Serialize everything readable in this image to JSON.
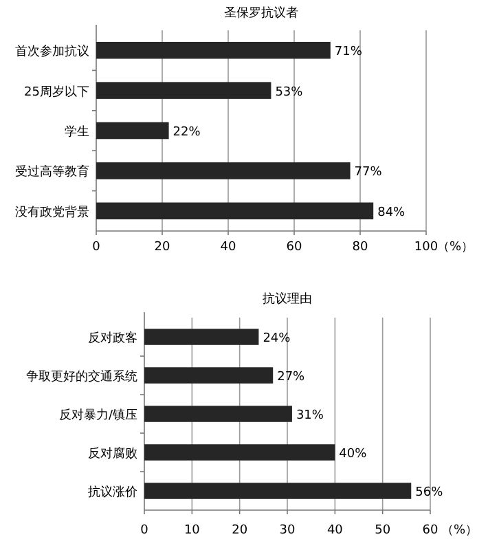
{
  "chart_data": [
    {
      "type": "bar",
      "orientation": "horizontal",
      "title": "圣保罗抗议者",
      "xlabel": "（%）",
      "categories": [
        "首次参加抗议",
        "25周岁以下",
        "学生",
        "受过高等教育",
        "没有政党背景"
      ],
      "values": [
        71,
        53,
        22,
        77,
        84
      ],
      "value_labels": [
        "71%",
        "53%",
        "22%",
        "77%",
        "84%"
      ],
      "color": "#262626",
      "xlim": [
        0,
        100
      ],
      "xticks": [
        0,
        20,
        40,
        60,
        80,
        100
      ],
      "grid": "x"
    },
    {
      "type": "bar",
      "orientation": "horizontal",
      "title": "抗议理由",
      "xlabel": "（%）",
      "categories": [
        "反对政客",
        "争取更好的交通系统",
        "反对暴力/镇压",
        "反对腐败",
        "抗议涨价"
      ],
      "values": [
        24,
        27,
        31,
        40,
        56
      ],
      "value_labels": [
        "24%",
        "27%",
        "31%",
        "40%",
        "56%"
      ],
      "color": "#262626",
      "xlim": [
        0,
        60
      ],
      "xticks": [
        0,
        10,
        20,
        30,
        40,
        50,
        60
      ],
      "grid": "x"
    }
  ]
}
